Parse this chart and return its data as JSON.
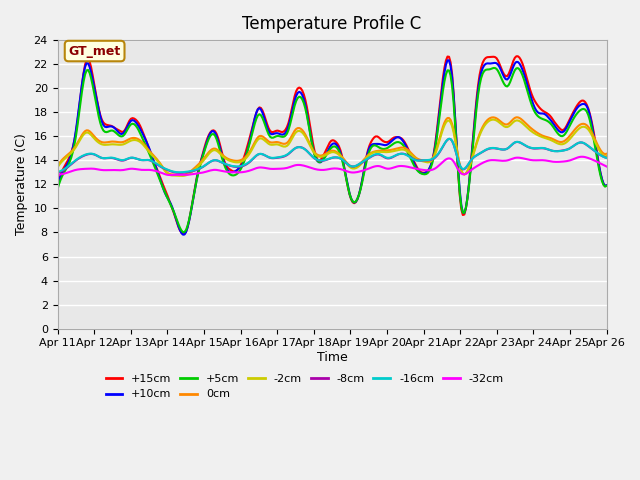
{
  "title": "Temperature Profile C",
  "xlabel": "Time",
  "ylabel": "Temperature (C)",
  "ylim": [
    0,
    24
  ],
  "yticks": [
    0,
    2,
    4,
    6,
    8,
    10,
    12,
    14,
    16,
    18,
    20,
    22,
    24
  ],
  "x_labels": [
    "Apr 11",
    "Apr 12",
    "Apr 13",
    "Apr 14",
    "Apr 15",
    "Apr 16",
    "Apr 17",
    "Apr 18",
    "Apr 19",
    "Apr 20",
    "Apr 21",
    "Apr 22",
    "Apr 23",
    "Apr 24",
    "Apr 25",
    "Apr 26"
  ],
  "annotation": "GT_met",
  "series_labels": [
    "+15cm",
    "+10cm",
    "+5cm",
    "0cm",
    "-2cm",
    "-8cm",
    "-16cm",
    "-32cm"
  ],
  "series_colors": [
    "#ff0000",
    "#0000ff",
    "#00cc00",
    "#ff8800",
    "#cccc00",
    "#aa00aa",
    "#00cccc",
    "#ff00ff"
  ],
  "line_widths": [
    1.5,
    1.5,
    1.5,
    1.5,
    1.5,
    1.5,
    1.5,
    1.5
  ],
  "background_color": "#e8e8e8",
  "grid_color": "#ffffff",
  "n_points": 360
}
